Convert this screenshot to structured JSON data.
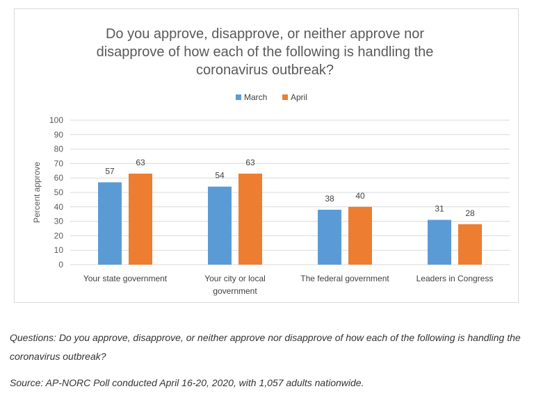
{
  "chart_data": {
    "type": "bar",
    "title_lines": [
      "Do you approve, disapprove, or neither approve nor",
      "disapprove of how each of the following is handling the",
      "coronavirus outbreak?"
    ],
    "categories": [
      [
        "Your state government"
      ],
      [
        "Your city or local",
        "government"
      ],
      [
        "The federal government"
      ],
      [
        "Leaders in Congress"
      ]
    ],
    "series": [
      {
        "name": "March",
        "color": "#5b9bd5",
        "values": [
          57,
          54,
          38,
          31
        ]
      },
      {
        "name": "April",
        "color": "#ed7d31",
        "values": [
          63,
          63,
          40,
          28
        ]
      }
    ],
    "ylabel": "Percent approve",
    "xlabel": "",
    "ylim": [
      0,
      100
    ],
    "yticks": [
      0,
      10,
      20,
      30,
      40,
      50,
      60,
      70,
      80,
      90,
      100
    ],
    "grid": true,
    "legend": "top-center",
    "data_labels": true
  },
  "notes": {
    "questions": "Questions: Do you approve, disapprove, or neither approve nor disapprove of how each of the following is handling the coronavirus outbreak?",
    "source": "Source: AP-NORC Poll conducted April 16-20, 2020, with 1,057 adults nationwide."
  }
}
